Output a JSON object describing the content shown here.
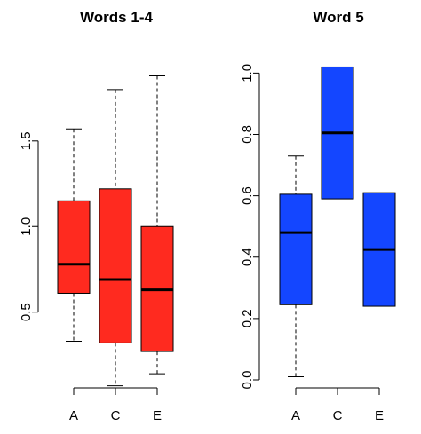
{
  "chart_data": [
    {
      "type": "box",
      "title": "Words 1-4",
      "color": "#ff2a1f",
      "categories": [
        "A",
        "C",
        "E"
      ],
      "ylim": [
        0.12,
        1.95
      ],
      "yticks": [
        0.5,
        1.0,
        1.5
      ],
      "ytick_labels": [
        "0.5",
        "1.0",
        "1.5"
      ],
      "boxes": [
        {
          "whisker_low": 0.33,
          "q1": 0.61,
          "median": 0.78,
          "q3": 1.15,
          "whisker_high": 1.57
        },
        {
          "whisker_low": 0.07,
          "q1": 0.32,
          "median": 0.69,
          "q3": 1.22,
          "whisker_high": 1.8
        },
        {
          "whisker_low": 0.14,
          "q1": 0.27,
          "median": 0.63,
          "q3": 1.0,
          "whisker_high": 1.88
        }
      ]
    },
    {
      "type": "box",
      "title": "Word 5",
      "color": "#1446ff",
      "categories": [
        "A",
        "C",
        "E"
      ],
      "ylim": [
        0.0,
        1.03
      ],
      "yticks": [
        0.0,
        0.2,
        0.4,
        0.6,
        0.8,
        1.0
      ],
      "ytick_labels": [
        "0.0",
        "0.2",
        "0.4",
        "0.6",
        "0.8",
        "1.0"
      ],
      "boxes": [
        {
          "whisker_low": 0.01,
          "q1": 0.245,
          "median": 0.48,
          "q3": 0.605,
          "whisker_high": 0.73
        },
        {
          "whisker_low": 0.59,
          "q1": 0.59,
          "median": 0.805,
          "q3": 1.02,
          "whisker_high": 1.02
        },
        {
          "whisker_low": 0.24,
          "q1": 0.24,
          "median": 0.425,
          "q3": 0.61,
          "whisker_high": 0.61
        }
      ]
    }
  ]
}
